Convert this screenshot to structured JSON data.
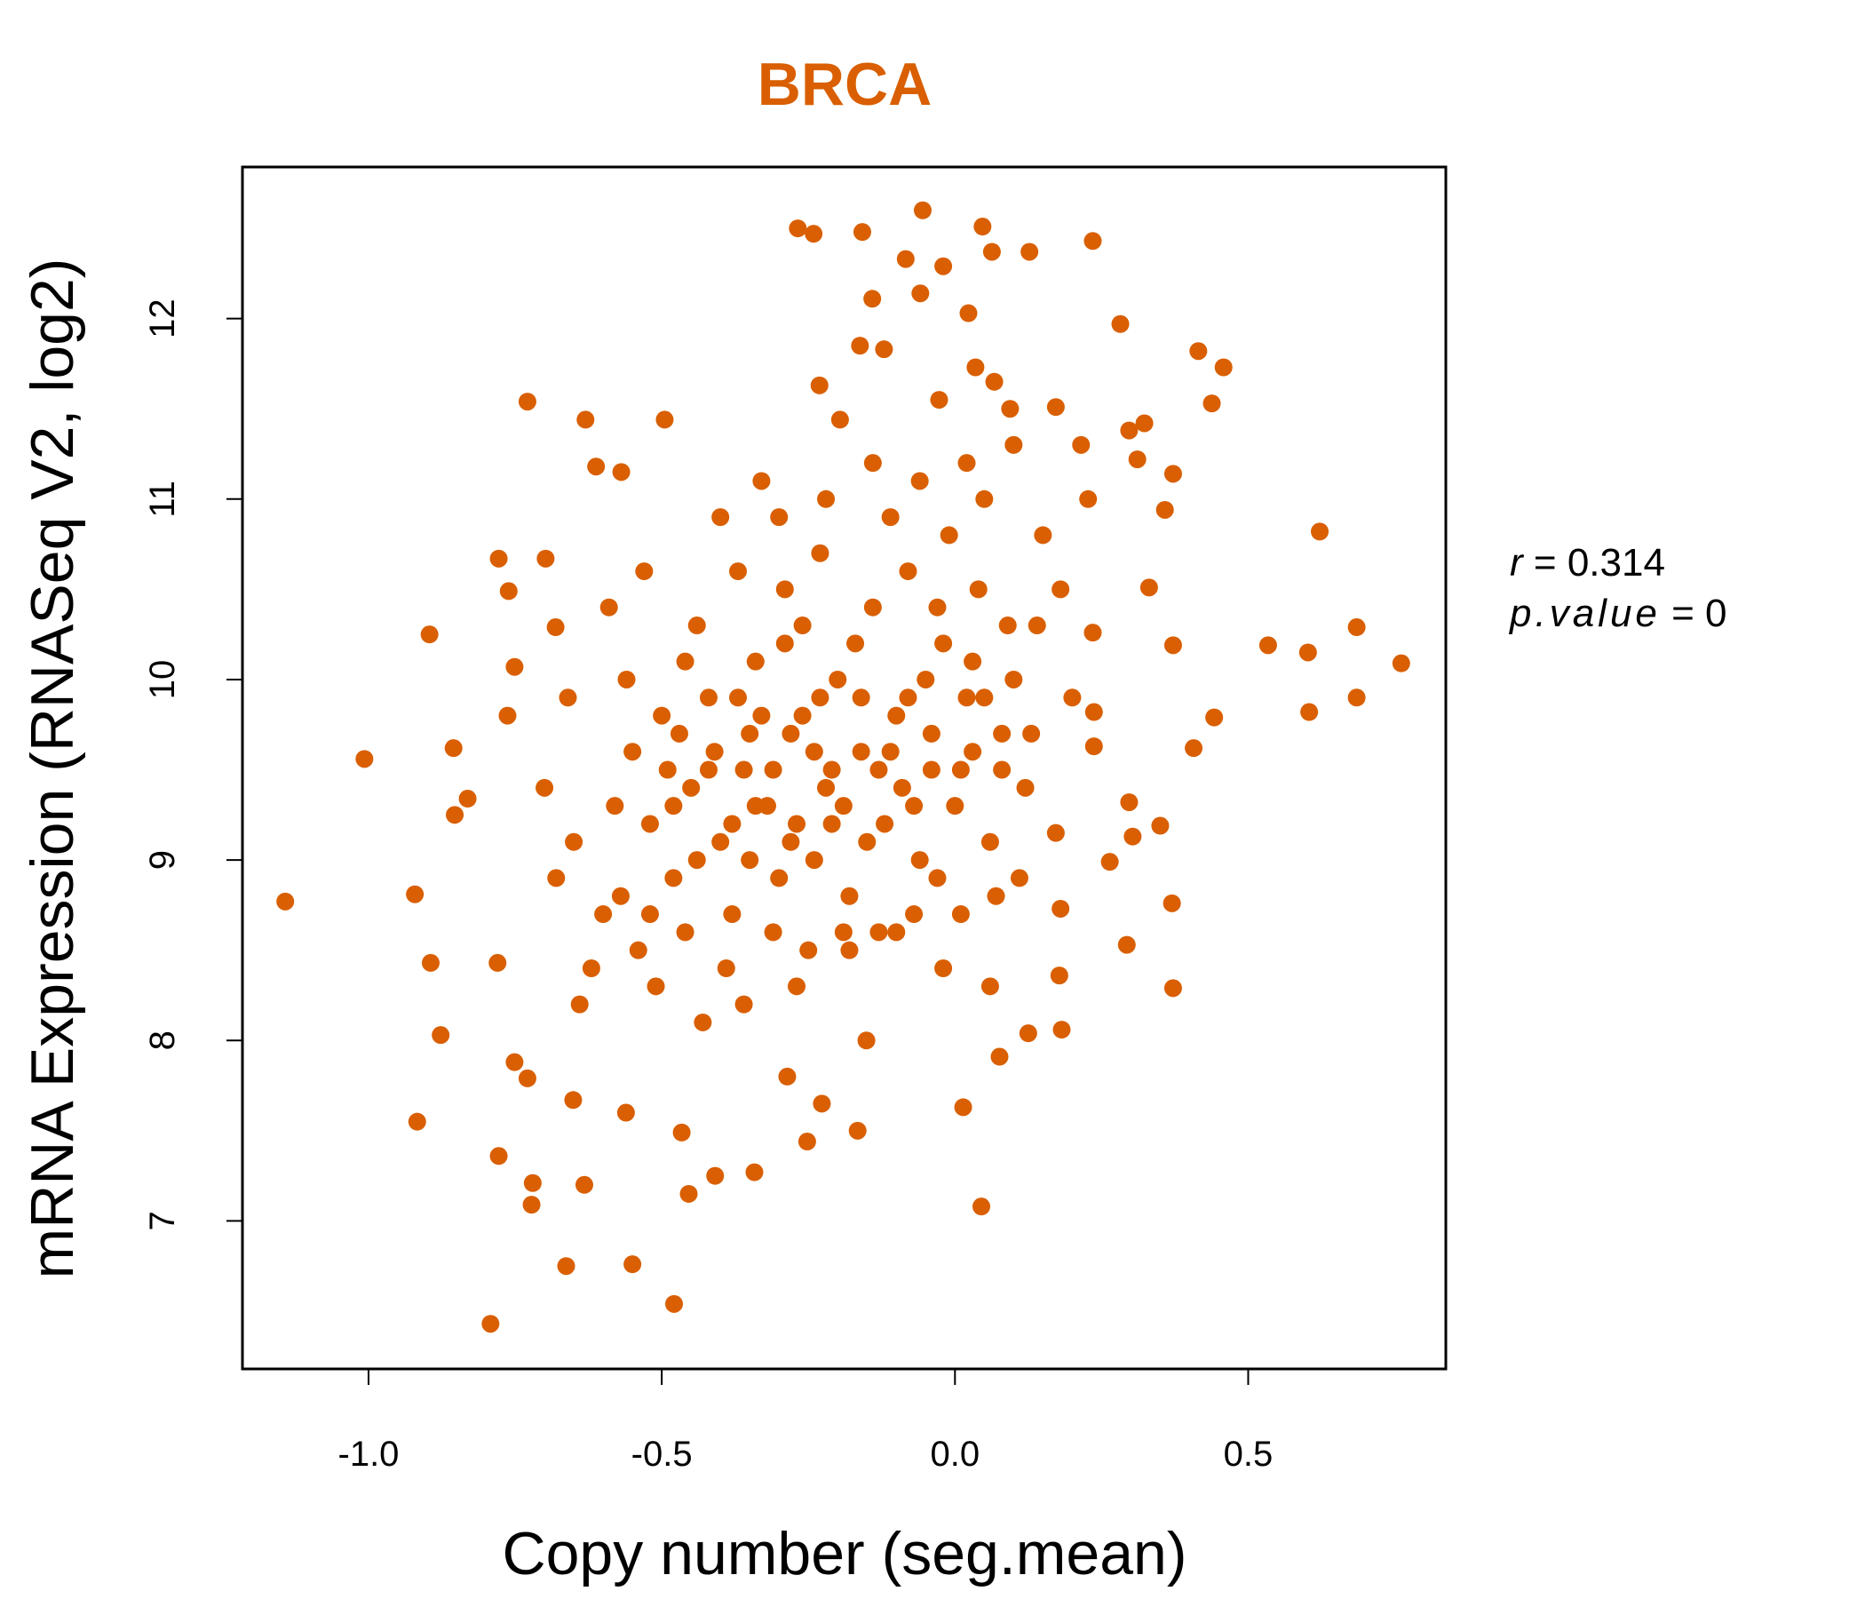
{
  "chart_data": {
    "type": "scatter",
    "title": "BRCA",
    "xlabel": "Copy number (seg.mean)",
    "ylabel": "mRNA Expression (RNASeq V2, log2)",
    "xlim": [
      -1.215,
      0.837
    ],
    "ylim": [
      6.18,
      12.84
    ],
    "xticks": [
      -1.0,
      -0.5,
      0.0,
      0.5
    ],
    "xtick_labels": [
      "-1.0",
      "-0.5",
      "0.0",
      "0.5"
    ],
    "yticks": [
      7,
      8,
      9,
      10,
      11,
      12
    ],
    "ytick_labels": [
      "7",
      "8",
      "9",
      "10",
      "11",
      "12"
    ],
    "grid": false,
    "stats": {
      "r_label": "r",
      "r_value": "0.314",
      "p_label": "p.value",
      "p_value": "0"
    },
    "color": "#D95F02",
    "points": [
      [
        -1.142,
        8.77
      ],
      [
        -1.007,
        9.56
      ],
      [
        -0.921,
        8.81
      ],
      [
        -0.917,
        7.55
      ],
      [
        -0.896,
        10.25
      ],
      [
        -0.894,
        8.43
      ],
      [
        -0.855,
        9.62
      ],
      [
        -0.792,
        6.43
      ],
      [
        -0.778,
        7.36
      ],
      [
        -0.729,
        11.54
      ],
      [
        -0.72,
        7.21
      ],
      [
        -0.722,
        7.09
      ],
      [
        -0.663,
        6.75
      ],
      [
        -0.55,
        6.76
      ],
      [
        -0.479,
        6.54
      ],
      [
        -0.63,
        11.44
      ],
      [
        -0.495,
        11.44
      ],
      [
        -0.268,
        12.5
      ],
      [
        -0.241,
        12.47
      ],
      [
        -0.158,
        12.48
      ],
      [
        -0.055,
        12.6
      ],
      [
        0.047,
        12.51
      ],
      [
        0.235,
        12.43
      ],
      [
        -0.084,
        12.33
      ],
      [
        -0.02,
        12.29
      ],
      [
        0.063,
        12.37
      ],
      [
        0.127,
        12.37
      ],
      [
        -0.059,
        12.14
      ],
      [
        -0.141,
        12.11
      ],
      [
        0.023,
        12.03
      ],
      [
        0.282,
        11.97
      ],
      [
        -0.162,
        11.85
      ],
      [
        -0.121,
        11.83
      ],
      [
        0.415,
        11.82
      ],
      [
        0.458,
        11.73
      ],
      [
        0.438,
        11.53
      ],
      [
        0.622,
        10.82
      ],
      [
        0.761,
        10.09
      ],
      [
        0.685,
        10.29
      ],
      [
        0.685,
        9.9
      ],
      [
        0.602,
        10.15
      ],
      [
        0.604,
        9.82
      ],
      [
        0.534,
        10.19
      ],
      [
        0.045,
        7.08
      ],
      [
        -0.342,
        7.27
      ],
      [
        -0.409,
        7.25
      ],
      [
        -0.454,
        7.15
      ],
      [
        -0.252,
        7.44
      ],
      [
        -0.166,
        7.5
      ],
      [
        -0.632,
        7.2
      ],
      [
        0.372,
        8.29
      ],
      [
        0.37,
        8.76
      ],
      [
        0.35,
        9.19
      ],
      [
        0.372,
        10.19
      ],
      [
        0.331,
        10.51
      ],
      [
        0.358,
        10.94
      ],
      [
        0.372,
        11.14
      ],
      [
        0.323,
        11.42
      ],
      [
        0.311,
        11.22
      ],
      [
        0.407,
        9.62
      ],
      [
        0.442,
        9.79
      ],
      [
        0.182,
        8.06
      ],
      [
        0.125,
        8.04
      ],
      [
        0.178,
        8.36
      ],
      [
        0.076,
        7.91
      ],
      [
        0.014,
        7.63
      ],
      [
        -0.151,
        8.0
      ],
      [
        -0.227,
        7.65
      ],
      [
        -0.286,
        7.8
      ],
      [
        -0.466,
        7.49
      ],
      [
        -0.561,
        7.6
      ],
      [
        -0.651,
        7.67
      ],
      [
        -0.751,
        7.88
      ],
      [
        -0.729,
        7.79
      ],
      [
        -0.877,
        8.03
      ],
      [
        -0.78,
        8.43
      ],
      [
        -0.778,
        10.67
      ],
      [
        -0.698,
        10.67
      ],
      [
        -0.681,
        10.29
      ],
      [
        -0.761,
        10.49
      ],
      [
        -0.751,
        10.07
      ],
      [
        -0.763,
        9.8
      ],
      [
        -0.831,
        9.34
      ],
      [
        -0.853,
        9.25
      ],
      [
        -0.612,
        11.18
      ],
      [
        -0.569,
        11.15
      ],
      [
        -0.231,
        11.63
      ],
      [
        -0.196,
        11.44
      ],
      [
        -0.027,
        11.55
      ],
      [
        0.035,
        11.73
      ],
      [
        0.067,
        11.65
      ],
      [
        0.094,
        11.5
      ],
      [
        0.172,
        11.51
      ],
      [
        0.215,
        11.3
      ],
      [
        0.227,
        11.0
      ],
      [
        0.297,
        11.38
      ],
      [
        0.235,
        10.26
      ],
      [
        0.237,
        9.82
      ],
      [
        0.237,
        9.63
      ],
      [
        0.297,
        9.32
      ],
      [
        0.303,
        9.13
      ],
      [
        0.293,
        8.53
      ],
      [
        0.264,
        8.99
      ],
      [
        0.18,
        8.73
      ],
      [
        0.172,
        9.15
      ],
      [
        -0.55,
        9.6
      ],
      [
        -0.52,
        9.2
      ],
      [
        -0.48,
        8.9
      ],
      [
        -0.45,
        9.4
      ],
      [
        -0.42,
        9.9
      ],
      [
        -0.4,
        9.1
      ],
      [
        -0.38,
        8.7
      ],
      [
        -0.36,
        9.5
      ],
      [
        -0.34,
        10.1
      ],
      [
        -0.32,
        9.3
      ],
      [
        -0.3,
        8.9
      ],
      [
        -0.28,
        9.7
      ],
      [
        -0.26,
        10.3
      ],
      [
        -0.24,
        9.0
      ],
      [
        -0.22,
        9.4
      ],
      [
        -0.2,
        10.0
      ],
      [
        -0.18,
        8.8
      ],
      [
        -0.16,
        9.6
      ],
      [
        -0.14,
        10.4
      ],
      [
        -0.12,
        9.2
      ],
      [
        -0.1,
        9.8
      ],
      [
        -0.08,
        10.6
      ],
      [
        -0.06,
        9.0
      ],
      [
        -0.04,
        9.5
      ],
      [
        -0.02,
        10.2
      ],
      [
        0.0,
        9.3
      ],
      [
        0.02,
        9.9
      ],
      [
        0.04,
        10.5
      ],
      [
        0.06,
        9.1
      ],
      [
        0.08,
        9.7
      ],
      [
        0.1,
        10.0
      ],
      [
        0.12,
        9.4
      ],
      [
        0.14,
        10.3
      ],
      [
        -0.6,
        8.7
      ],
      [
        -0.58,
        9.3
      ],
      [
        -0.56,
        10.0
      ],
      [
        -0.54,
        8.5
      ],
      [
        -0.5,
        9.8
      ],
      [
        -0.46,
        8.6
      ],
      [
        -0.44,
        10.3
      ],
      [
        -0.41,
        9.6
      ],
      [
        -0.39,
        8.4
      ],
      [
        -0.37,
        10.6
      ],
      [
        -0.35,
        9.0
      ],
      [
        -0.33,
        9.8
      ],
      [
        -0.31,
        8.6
      ],
      [
        -0.29,
        10.5
      ],
      [
        -0.27,
        9.2
      ],
      [
        -0.25,
        8.5
      ],
      [
        -0.23,
        10.7
      ],
      [
        -0.21,
        9.5
      ],
      [
        -0.19,
        8.6
      ],
      [
        -0.17,
        10.2
      ],
      [
        -0.15,
        9.1
      ],
      [
        -0.13,
        8.6
      ],
      [
        -0.11,
        10.9
      ],
      [
        -0.09,
        9.4
      ],
      [
        -0.07,
        8.7
      ],
      [
        -0.05,
        10.0
      ],
      [
        -0.03,
        8.9
      ],
      [
        -0.01,
        10.8
      ],
      [
        0.01,
        8.7
      ],
      [
        0.03,
        9.6
      ],
      [
        0.05,
        11.0
      ],
      [
        0.07,
        8.8
      ],
      [
        0.09,
        10.3
      ],
      [
        0.11,
        8.9
      ],
      [
        0.13,
        9.7
      ],
      [
        -0.65,
        9.1
      ],
      [
        -0.62,
        8.4
      ],
      [
        -0.68,
        8.9
      ],
      [
        -0.7,
        9.4
      ],
      [
        -0.66,
        9.9
      ],
      [
        -0.64,
        8.2
      ],
      [
        -0.59,
        10.4
      ],
      [
        -0.57,
        8.8
      ],
      [
        -0.53,
        10.6
      ],
      [
        -0.51,
        8.3
      ],
      [
        -0.47,
        9.7
      ],
      [
        -0.43,
        8.1
      ],
      [
        -0.4,
        10.9
      ],
      [
        -0.36,
        8.2
      ],
      [
        -0.33,
        11.1
      ],
      [
        -0.3,
        10.9
      ],
      [
        -0.27,
        8.3
      ],
      [
        -0.22,
        11.0
      ],
      [
        -0.18,
        8.5
      ],
      [
        -0.14,
        11.2
      ],
      [
        -0.1,
        8.6
      ],
      [
        -0.06,
        11.1
      ],
      [
        -0.02,
        8.4
      ],
      [
        0.02,
        11.2
      ],
      [
        0.06,
        8.3
      ],
      [
        0.1,
        11.3
      ],
      [
        0.15,
        10.8
      ],
      [
        0.18,
        10.5
      ],
      [
        0.2,
        9.9
      ],
      [
        -0.48,
        9.3
      ],
      [
        -0.44,
        9.0
      ],
      [
        -0.38,
        9.2
      ],
      [
        -0.35,
        9.7
      ],
      [
        -0.31,
        9.5
      ],
      [
        -0.26,
        9.8
      ],
      [
        -0.21,
        9.2
      ],
      [
        -0.16,
        9.9
      ],
      [
        -0.11,
        9.6
      ],
      [
        -0.07,
        9.3
      ],
      [
        -0.03,
        10.4
      ],
      [
        0.03,
        10.1
      ],
      [
        0.08,
        9.5
      ],
      [
        -0.42,
        9.5
      ],
      [
        -0.34,
        9.3
      ],
      [
        -0.28,
        9.1
      ],
      [
        -0.24,
        9.6
      ],
      [
        -0.19,
        9.3
      ],
      [
        -0.13,
        9.5
      ],
      [
        -0.08,
        9.9
      ],
      [
        -0.04,
        9.7
      ],
      [
        0.01,
        9.5
      ],
      [
        0.05,
        9.9
      ],
      [
        -0.46,
        10.1
      ],
      [
        -0.52,
        8.7
      ],
      [
        -0.49,
        9.5
      ],
      [
        -0.37,
        9.9
      ],
      [
        -0.29,
        10.2
      ],
      [
        -0.23,
        9.9
      ]
    ]
  }
}
